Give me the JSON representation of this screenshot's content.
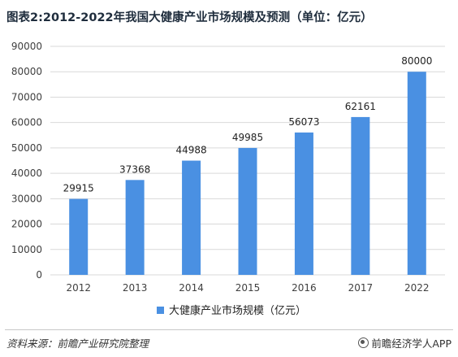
{
  "header": {
    "title": "图表2:2012-2022年我国大健康产业市场规模及预测（单位：亿元）"
  },
  "footer": {
    "source": "资料来源：前瞻产业研究院整理",
    "brand": "前瞻经济学人APP"
  },
  "colors": {
    "bar": "#4a90e2",
    "grid": "#d9d9d9",
    "axis_text": "#404040"
  },
  "chart_data": {
    "type": "bar",
    "categories": [
      "2012",
      "2013",
      "2014",
      "2015",
      "2016",
      "2017",
      "2022"
    ],
    "series": [
      {
        "name": "大健康产业市场规模（亿元）",
        "values": [
          29915,
          37368,
          44988,
          49985,
          56073,
          62161,
          80000
        ]
      }
    ],
    "data_labels": [
      "29915",
      "37368",
      "44988",
      "49985",
      "56073",
      "62161",
      "80000"
    ],
    "yticks": [
      "0",
      "10000",
      "20000",
      "30000",
      "40000",
      "50000",
      "60000",
      "70000",
      "80000",
      "90000"
    ],
    "ylim": [
      0,
      90000
    ],
    "grid": true,
    "legend": "bottom"
  }
}
